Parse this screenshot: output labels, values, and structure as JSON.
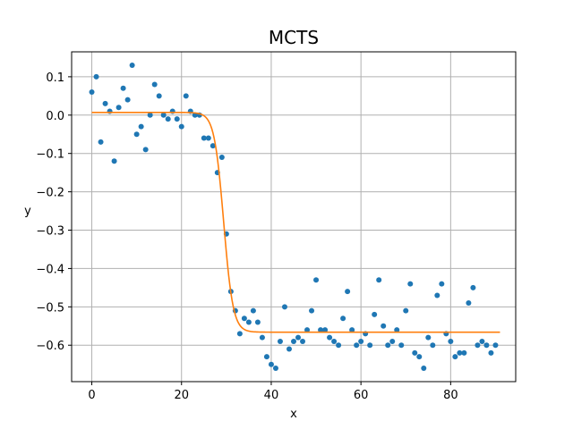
{
  "chart_data": {
    "type": "scatter",
    "title": "MCTS",
    "xlabel": "x",
    "ylabel": "y",
    "xlim": [
      -4.5,
      94.5
    ],
    "ylim": [
      -0.695,
      0.165
    ],
    "grid": true,
    "x_ticks": [
      0,
      20,
      40,
      60,
      80
    ],
    "y_ticks": [
      0.1,
      0.0,
      -0.1,
      -0.2,
      -0.3,
      -0.4,
      -0.5,
      -0.6
    ],
    "x_tick_labels": [
      "0",
      "20",
      "40",
      "60",
      "80"
    ],
    "y_tick_labels": [
      "0.1",
      "0.0",
      "−0.1",
      "−0.2",
      "−0.3",
      "−0.4",
      "−0.5",
      "−0.6"
    ],
    "colors": {
      "points": "#1f77b4",
      "fit": "#ff7f0e",
      "grid": "#b0b0b0"
    },
    "series": [
      {
        "kind": "points",
        "x": [
          0,
          1,
          2,
          3,
          4,
          5,
          6,
          7,
          8,
          9,
          10,
          11,
          12,
          13,
          14,
          15,
          16,
          17,
          18,
          19,
          20,
          21,
          22,
          23,
          24,
          25,
          26,
          27,
          28,
          29,
          30,
          31,
          32,
          33,
          34,
          35,
          36,
          37,
          38,
          39,
          40,
          41,
          42,
          43,
          44,
          45,
          46,
          47,
          48,
          49,
          50,
          51,
          52,
          53,
          54,
          55,
          56,
          57,
          58,
          59,
          60,
          61,
          62,
          63,
          64,
          65,
          66,
          67,
          68,
          69,
          70,
          71,
          72,
          73,
          74,
          75,
          76,
          77,
          78,
          79,
          80,
          81,
          82,
          83,
          84,
          85,
          86,
          87,
          88,
          89,
          90
        ],
        "y": [
          0.06,
          0.1,
          -0.07,
          0.03,
          0.01,
          -0.12,
          0.02,
          0.07,
          0.04,
          0.13,
          -0.05,
          -0.03,
          -0.09,
          0.0,
          0.08,
          0.05,
          0.0,
          -0.01,
          0.01,
          -0.01,
          -0.03,
          0.05,
          0.01,
          0.0,
          0.0,
          -0.06,
          -0.06,
          -0.08,
          -0.15,
          -0.11,
          -0.31,
          -0.46,
          -0.51,
          -0.57,
          -0.53,
          -0.54,
          -0.51,
          -0.54,
          -0.58,
          -0.63,
          -0.65,
          -0.66,
          -0.59,
          -0.5,
          -0.61,
          -0.59,
          -0.58,
          -0.59,
          -0.56,
          -0.51,
          -0.43,
          -0.56,
          -0.56,
          -0.58,
          -0.59,
          -0.6,
          -0.53,
          -0.46,
          -0.56,
          -0.6,
          -0.59,
          -0.57,
          -0.6,
          -0.52,
          -0.43,
          -0.55,
          -0.6,
          -0.59,
          -0.56,
          -0.6,
          -0.51,
          -0.44,
          -0.62,
          -0.63,
          -0.66,
          -0.58,
          -0.6,
          -0.47,
          -0.44,
          -0.57,
          -0.59,
          -0.63,
          -0.62,
          -0.62,
          -0.49,
          -0.45,
          -0.6,
          -0.59,
          -0.6,
          -0.62,
          -0.6
        ]
      },
      {
        "kind": "fit",
        "model": "logistic",
        "upper": 0.007,
        "lower": -0.566,
        "midpoint": 29.4,
        "steepness": 0.95,
        "x_range": [
          0,
          91
        ]
      }
    ]
  }
}
